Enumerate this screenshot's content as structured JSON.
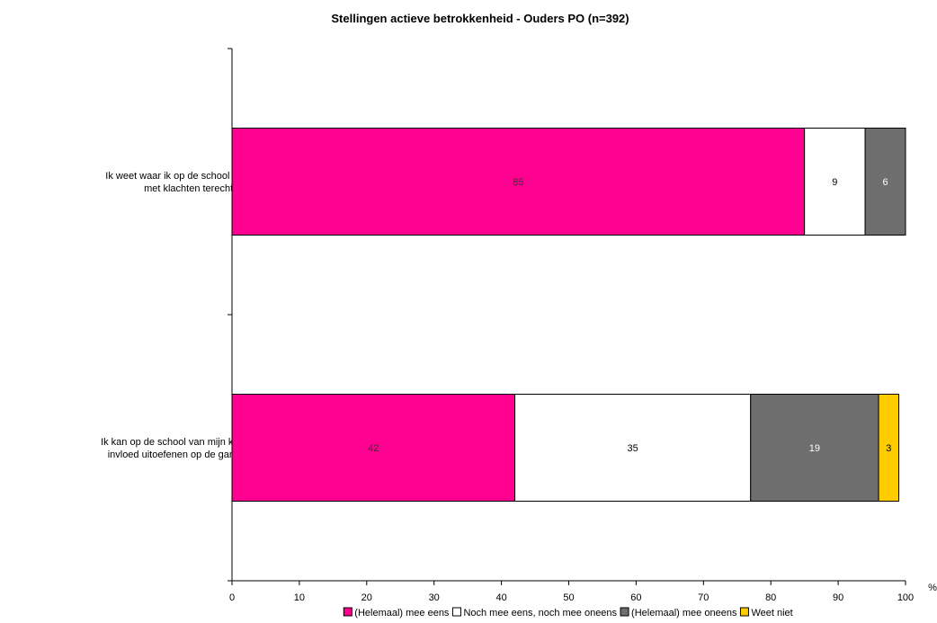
{
  "chart_data": {
    "type": "bar",
    "orientation": "horizontal",
    "stacked": true,
    "title": "Stellingen actieve betrokkenheid - Ouders PO (n=392)",
    "xlabel": "%",
    "ylabel": "",
    "xlim": [
      0,
      100
    ],
    "xticks": [
      0,
      10,
      20,
      30,
      40,
      50,
      60,
      70,
      80,
      90,
      100
    ],
    "grid": false,
    "legend": "bottom",
    "categories": [
      [
        "Ik weet waar ik op de school van mijn kind",
        "met klachten terecht kan"
      ],
      [
        "Ik kan op de school van mijn kind voldoende",
        "invloed uitoefenen op de gang van zaken"
      ]
    ],
    "series": [
      {
        "name": "(Helemaal) mee eens",
        "values": [
          85,
          42
        ],
        "color": "#ff0090",
        "label_color": "#333333"
      },
      {
        "name": "Noch mee eens, noch mee oneens",
        "values": [
          9,
          35
        ],
        "color": "#ffffff",
        "label_color": "#000000"
      },
      {
        "name": "(Helemaal) mee oneens",
        "values": [
          6,
          19
        ],
        "color": "#6e6e6e",
        "label_color": "#ffffff"
      },
      {
        "name": "Weet niet",
        "values": [
          0,
          3
        ],
        "color": "#ffcc00",
        "label_color": "#000000"
      }
    ]
  }
}
